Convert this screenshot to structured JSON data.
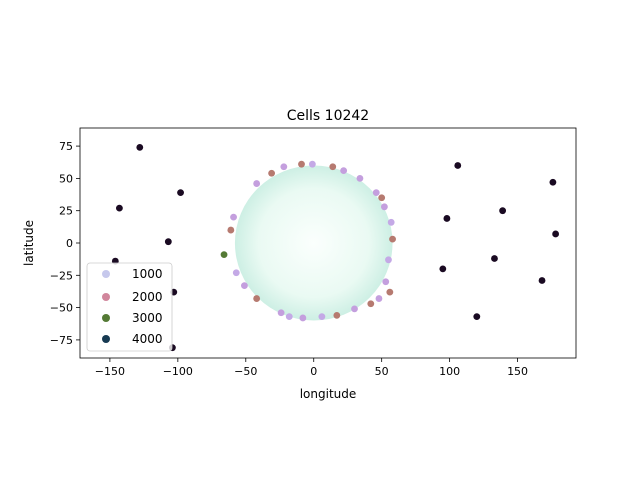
{
  "chart_data": {
    "type": "scatter",
    "title": "Cells 10242",
    "xlabel": "longitude",
    "ylabel": "latitude",
    "xlim": [
      -172,
      193
    ],
    "ylim": [
      -89,
      89
    ],
    "xticks": [
      -150,
      -100,
      -50,
      0,
      50,
      100,
      150
    ],
    "yticks": [
      -75,
      -50,
      -25,
      0,
      25,
      50,
      75
    ],
    "grid": false,
    "legend_position": "lower-left",
    "colormap": "cubehelix-like",
    "legend": [
      {
        "label": "1000",
        "color": "#c6c8ec"
      },
      {
        "label": "2000",
        "color": "#d1869c"
      },
      {
        "label": "3000",
        "color": "#547a35"
      },
      {
        "label": "4000",
        "color": "#173a52"
      }
    ],
    "disk": {
      "center_lon": 0,
      "center_lat": 0,
      "radius_lon": 58,
      "radius_lat": 60,
      "fill_inner": "#fbfffd",
      "fill_outer": "#cdefe4"
    },
    "series": [
      {
        "values": [
          {
            "x": -1,
            "y": 61,
            "color": "#c4a9e6"
          },
          {
            "x": -9,
            "y": 61,
            "color": "#b67a70"
          },
          {
            "x": -22,
            "y": 59,
            "color": "#c49fde"
          },
          {
            "x": -31,
            "y": 54,
            "color": "#b67a70"
          },
          {
            "x": 14,
            "y": 59,
            "color": "#b67a70"
          },
          {
            "x": 22,
            "y": 56,
            "color": "#c49fde"
          },
          {
            "x": 34,
            "y": 50,
            "color": "#c49fde"
          },
          {
            "x": 46,
            "y": 39,
            "color": "#c49fde"
          },
          {
            "x": 50,
            "y": 35,
            "color": "#b67a70"
          },
          {
            "x": 52,
            "y": 28,
            "color": "#c49fde"
          },
          {
            "x": 57,
            "y": 16,
            "color": "#c4a9e6"
          },
          {
            "x": 58,
            "y": 3,
            "color": "#b67a70"
          },
          {
            "x": 55,
            "y": -13,
            "color": "#c4a9e6"
          },
          {
            "x": 53,
            "y": -30,
            "color": "#c49fde"
          },
          {
            "x": 56,
            "y": -38,
            "color": "#b67a70"
          },
          {
            "x": 48,
            "y": -43,
            "color": "#c49fde"
          },
          {
            "x": 42,
            "y": -47,
            "color": "#b67a70"
          },
          {
            "x": 30,
            "y": -51,
            "color": "#c49fde"
          },
          {
            "x": 17,
            "y": -56,
            "color": "#b67a70"
          },
          {
            "x": 6,
            "y": -57,
            "color": "#c4a9e6"
          },
          {
            "x": -8,
            "y": -58,
            "color": "#c49fde"
          },
          {
            "x": -18,
            "y": -57,
            "color": "#c4a9e6"
          },
          {
            "x": -24,
            "y": -54,
            "color": "#c49fde"
          },
          {
            "x": -42,
            "y": -43,
            "color": "#b67a70"
          },
          {
            "x": -51,
            "y": -33,
            "color": "#c49fde"
          },
          {
            "x": -57,
            "y": -23,
            "color": "#c4a9e6"
          },
          {
            "x": -61,
            "y": 10,
            "color": "#b67a70"
          },
          {
            "x": -59,
            "y": 20,
            "color": "#c49fde"
          },
          {
            "x": -42,
            "y": 46,
            "color": "#c49fde"
          },
          {
            "x": -66,
            "y": -9,
            "color": "#547a35"
          },
          {
            "x": -128,
            "y": 74,
            "color": "#1a0a22"
          },
          {
            "x": -98,
            "y": 39,
            "color": "#1a0a22"
          },
          {
            "x": -143,
            "y": 27,
            "color": "#1a0a22"
          },
          {
            "x": -107,
            "y": 1,
            "color": "#1a0a22"
          },
          {
            "x": -146,
            "y": -14,
            "color": "#1a0a22"
          },
          {
            "x": -103,
            "y": -38,
            "color": "#1a0a22"
          },
          {
            "x": -104,
            "y": -81,
            "color": "#1a0a22"
          },
          {
            "x": 106,
            "y": 60,
            "color": "#1a0a22"
          },
          {
            "x": 176,
            "y": 47,
            "color": "#1a0a22"
          },
          {
            "x": 139,
            "y": 25,
            "color": "#1a0a22"
          },
          {
            "x": 98,
            "y": 19,
            "color": "#1a0a22"
          },
          {
            "x": 178,
            "y": 7,
            "color": "#1a0a22"
          },
          {
            "x": 133,
            "y": -12,
            "color": "#1a0a22"
          },
          {
            "x": 95,
            "y": -20,
            "color": "#1a0a22"
          },
          {
            "x": 168,
            "y": -29,
            "color": "#1a0a22"
          },
          {
            "x": 120,
            "y": -57,
            "color": "#1a0a22"
          }
        ]
      }
    ]
  }
}
